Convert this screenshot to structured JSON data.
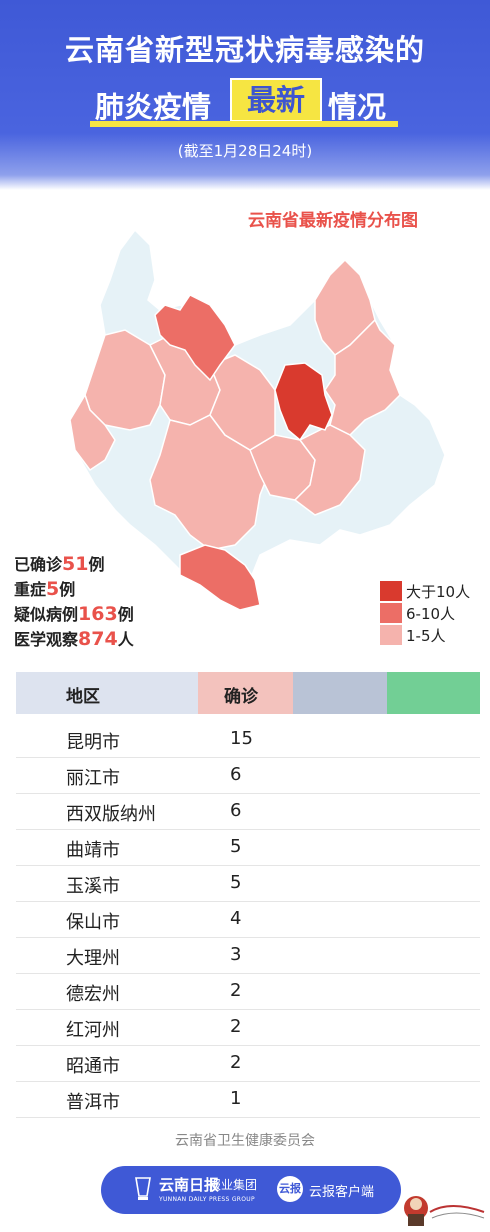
{
  "header": {
    "title_line1": "云南省新型冠状病毒感染的",
    "title_line2_left": "肺炎疫情",
    "title_line2_highlight": "最新",
    "title_line2_right": "情况",
    "subtitle": "(截至1月28日24时)"
  },
  "map": {
    "title": "云南省最新疫情分布图",
    "colors": {
      "gt10": "#d93a2e",
      "6to10": "#ec6e66",
      "1to5": "#f5b3ad",
      "none": "#e6f2f7"
    }
  },
  "stats": {
    "confirmed_label": "已确诊",
    "confirmed_value": "51",
    "confirmed_unit": "例",
    "severe_label": "重症",
    "severe_value": "5",
    "severe_unit": "例",
    "suspected_label": "疑似病例",
    "suspected_value": "163",
    "suspected_unit": "例",
    "observation_label": "医学观察",
    "observation_value": "874",
    "observation_unit": "人"
  },
  "legend": [
    {
      "label": "大于10人",
      "color": "#d93a2e"
    },
    {
      "label": "6-10人",
      "color": "#ec6e66"
    },
    {
      "label": "1-5人",
      "color": "#f5b3ad"
    }
  ],
  "table": {
    "headers": {
      "region": "地区",
      "confirmed": "确诊"
    },
    "rows": [
      {
        "region": "昆明市",
        "confirmed": "15"
      },
      {
        "region": "丽江市",
        "confirmed": "6"
      },
      {
        "region": "西双版纳州",
        "confirmed": "6"
      },
      {
        "region": "曲靖市",
        "confirmed": "5"
      },
      {
        "region": "玉溪市",
        "confirmed": "5"
      },
      {
        "region": "保山市",
        "confirmed": "4"
      },
      {
        "region": "大理州",
        "confirmed": "3"
      },
      {
        "region": "德宏州",
        "confirmed": "2"
      },
      {
        "region": "红河州",
        "confirmed": "2"
      },
      {
        "region": "昭通市",
        "confirmed": "2"
      },
      {
        "region": "普洱市",
        "confirmed": "1"
      }
    ]
  },
  "footer": {
    "org": "云南省卫生健康委员会",
    "logo_text": "云南日报",
    "group_text": "报业集团",
    "english_text": "YUNNAN DAILY PRESS GROUP",
    "circle_text": "云报",
    "client_text": "云报客户端"
  }
}
